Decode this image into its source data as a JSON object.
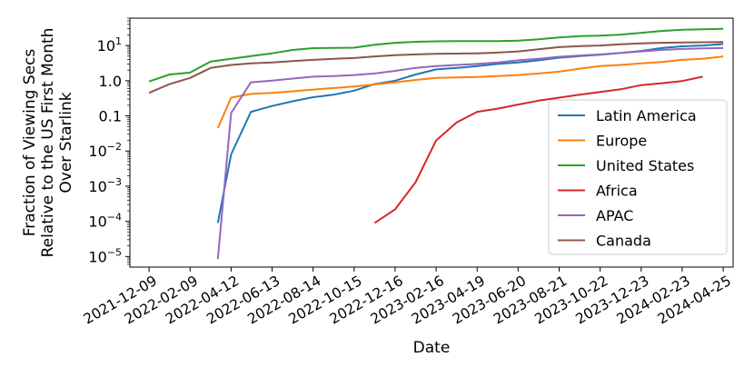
{
  "chart_data": {
    "type": "line",
    "title": "",
    "xlabel": "Date",
    "ylabel_lines": [
      "Fraction of Viewing Secs",
      "Relative to the US First Month",
      "Over Starlink"
    ],
    "yscale": "log",
    "ylim": [
      5e-06,
      60
    ],
    "xlim": [
      "2021-11-10",
      "2024-05-10"
    ],
    "grid": false,
    "legend_position": "center-right",
    "x_tick_labels": [
      "2021-12-09",
      "2022-02-09",
      "2022-04-12",
      "2022-06-13",
      "2022-08-14",
      "2022-10-15",
      "2022-12-16",
      "2023-02-16",
      "2023-04-19",
      "2023-06-20",
      "2023-08-21",
      "2023-10-22",
      "2023-12-23",
      "2024-02-23",
      "2024-04-25"
    ],
    "y_ticks": [
      {
        "value": 1e-05,
        "base": "10",
        "exp": "−5"
      },
      {
        "value": 0.0001,
        "base": "10",
        "exp": "−4"
      },
      {
        "value": 0.001,
        "base": "10",
        "exp": "−3"
      },
      {
        "value": 0.01,
        "plain": "10",
        "sup": "−2",
        "label": "10−2"
      },
      {
        "value": 0.1,
        "label": "0.1"
      },
      {
        "value": 1,
        "label": "1.0"
      },
      {
        "value": 10,
        "label": "10",
        "sup": "1"
      }
    ],
    "series": [
      {
        "name": "Latin America",
        "color": "#1f77b4",
        "points": [
          [
            "2022-03-23",
            9e-05
          ],
          [
            "2022-04-12",
            0.008
          ],
          [
            "2022-05-12",
            0.13
          ],
          [
            "2022-06-13",
            0.19
          ],
          [
            "2022-07-14",
            0.26
          ],
          [
            "2022-08-14",
            0.34
          ],
          [
            "2022-09-14",
            0.4
          ],
          [
            "2022-10-15",
            0.52
          ],
          [
            "2022-11-15",
            0.8
          ],
          [
            "2022-12-16",
            1.0
          ],
          [
            "2023-01-16",
            1.5
          ],
          [
            "2023-02-16",
            2.1
          ],
          [
            "2023-03-19",
            2.3
          ],
          [
            "2023-04-19",
            2.6
          ],
          [
            "2023-05-20",
            3.0
          ],
          [
            "2023-06-20",
            3.3
          ],
          [
            "2023-07-21",
            3.8
          ],
          [
            "2023-08-21",
            4.5
          ],
          [
            "2023-09-21",
            5.0
          ],
          [
            "2023-10-22",
            5.5
          ],
          [
            "2023-11-22",
            6.2
          ],
          [
            "2023-12-23",
            7.0
          ],
          [
            "2024-01-23",
            8.5
          ],
          [
            "2024-02-23",
            9.5
          ],
          [
            "2024-03-25",
            10.0
          ],
          [
            "2024-04-25",
            11.0
          ]
        ]
      },
      {
        "name": "Europe",
        "color": "#ff7f0e",
        "points": [
          [
            "2022-03-23",
            0.045
          ],
          [
            "2022-04-12",
            0.33
          ],
          [
            "2022-05-12",
            0.42
          ],
          [
            "2022-06-13",
            0.45
          ],
          [
            "2022-07-14",
            0.5
          ],
          [
            "2022-08-14",
            0.56
          ],
          [
            "2022-09-14",
            0.62
          ],
          [
            "2022-10-15",
            0.68
          ],
          [
            "2022-11-15",
            0.78
          ],
          [
            "2022-12-16",
            0.9
          ],
          [
            "2023-01-16",
            1.05
          ],
          [
            "2023-02-16",
            1.2
          ],
          [
            "2023-03-19",
            1.23
          ],
          [
            "2023-04-19",
            1.28
          ],
          [
            "2023-05-20",
            1.35
          ],
          [
            "2023-06-20",
            1.45
          ],
          [
            "2023-07-21",
            1.6
          ],
          [
            "2023-08-21",
            1.8
          ],
          [
            "2023-09-21",
            2.2
          ],
          [
            "2023-10-22",
            2.6
          ],
          [
            "2023-11-22",
            2.8
          ],
          [
            "2023-12-23",
            3.1
          ],
          [
            "2024-01-23",
            3.4
          ],
          [
            "2024-02-23",
            3.9
          ],
          [
            "2024-03-25",
            4.2
          ],
          [
            "2024-04-25",
            4.9
          ]
        ]
      },
      {
        "name": "United States",
        "color": "#2ca02c",
        "points": [
          [
            "2021-12-09",
            0.95
          ],
          [
            "2022-01-09",
            1.5
          ],
          [
            "2022-02-09",
            1.7
          ],
          [
            "2022-03-12",
            3.5
          ],
          [
            "2022-04-12",
            4.2
          ],
          [
            "2022-05-12",
            5.0
          ],
          [
            "2022-06-13",
            6.0
          ],
          [
            "2022-07-14",
            7.5
          ],
          [
            "2022-08-14",
            8.4
          ],
          [
            "2022-09-14",
            8.6
          ],
          [
            "2022-10-15",
            8.7
          ],
          [
            "2022-11-15",
            10.5
          ],
          [
            "2022-12-16",
            12.0
          ],
          [
            "2023-01-16",
            12.8
          ],
          [
            "2023-02-16",
            13.2
          ],
          [
            "2023-03-19",
            13.4
          ],
          [
            "2023-04-19",
            13.4
          ],
          [
            "2023-05-20",
            13.3
          ],
          [
            "2023-06-20",
            13.8
          ],
          [
            "2023-07-21",
            15.0
          ],
          [
            "2023-08-21",
            17.0
          ],
          [
            "2023-09-21",
            18.5
          ],
          [
            "2023-10-22",
            19.0
          ],
          [
            "2023-11-22",
            20.5
          ],
          [
            "2023-12-23",
            23.0
          ],
          [
            "2024-01-23",
            26.0
          ],
          [
            "2024-02-23",
            28.0
          ],
          [
            "2024-03-25",
            29.0
          ],
          [
            "2024-04-25",
            30.0
          ]
        ]
      },
      {
        "name": "Africa",
        "color": "#d62728",
        "points": [
          [
            "2022-11-15",
            9e-05
          ],
          [
            "2022-12-16",
            0.00022
          ],
          [
            "2023-01-16",
            0.0013
          ],
          [
            "2023-02-16",
            0.02
          ],
          [
            "2023-03-19",
            0.065
          ],
          [
            "2023-04-19",
            0.13
          ],
          [
            "2023-05-20",
            0.16
          ],
          [
            "2023-06-20",
            0.21
          ],
          [
            "2023-07-21",
            0.27
          ],
          [
            "2023-08-21",
            0.33
          ],
          [
            "2023-09-21",
            0.4
          ],
          [
            "2023-10-22",
            0.48
          ],
          [
            "2023-11-22",
            0.57
          ],
          [
            "2023-12-23",
            0.75
          ],
          [
            "2024-01-23",
            0.85
          ],
          [
            "2024-02-23",
            0.98
          ],
          [
            "2024-03-25",
            1.3
          ]
        ]
      },
      {
        "name": "APAC",
        "color": "#9467bd",
        "points": [
          [
            "2022-03-23",
            8.5e-06
          ],
          [
            "2022-04-12",
            0.12
          ],
          [
            "2022-05-12",
            0.9
          ],
          [
            "2022-06-13",
            1.0
          ],
          [
            "2022-07-14",
            1.15
          ],
          [
            "2022-08-14",
            1.3
          ],
          [
            "2022-09-14",
            1.35
          ],
          [
            "2022-10-15",
            1.45
          ],
          [
            "2022-11-15",
            1.6
          ],
          [
            "2022-12-16",
            1.9
          ],
          [
            "2023-01-16",
            2.3
          ],
          [
            "2023-02-16",
            2.6
          ],
          [
            "2023-03-19",
            2.8
          ],
          [
            "2023-04-19",
            3.0
          ],
          [
            "2023-05-20",
            3.3
          ],
          [
            "2023-06-20",
            3.8
          ],
          [
            "2023-07-21",
            4.2
          ],
          [
            "2023-08-21",
            4.8
          ],
          [
            "2023-09-21",
            5.2
          ],
          [
            "2023-10-22",
            5.6
          ],
          [
            "2023-11-22",
            6.2
          ],
          [
            "2023-12-23",
            6.8
          ],
          [
            "2024-01-23",
            7.5
          ],
          [
            "2024-02-23",
            8.0
          ],
          [
            "2024-03-25",
            8.3
          ],
          [
            "2024-04-25",
            8.5
          ]
        ]
      },
      {
        "name": "Canada",
        "color": "#8c564b",
        "points": [
          [
            "2021-12-09",
            0.45
          ],
          [
            "2022-01-09",
            0.8
          ],
          [
            "2022-02-09",
            1.2
          ],
          [
            "2022-03-12",
            2.3
          ],
          [
            "2022-04-12",
            2.8
          ],
          [
            "2022-05-12",
            3.1
          ],
          [
            "2022-06-13",
            3.3
          ],
          [
            "2022-07-14",
            3.6
          ],
          [
            "2022-08-14",
            3.9
          ],
          [
            "2022-09-14",
            4.2
          ],
          [
            "2022-10-15",
            4.4
          ],
          [
            "2022-11-15",
            4.9
          ],
          [
            "2022-12-16",
            5.3
          ],
          [
            "2023-01-16",
            5.6
          ],
          [
            "2023-02-16",
            5.8
          ],
          [
            "2023-03-19",
            5.9
          ],
          [
            "2023-04-19",
            6.0
          ],
          [
            "2023-05-20",
            6.3
          ],
          [
            "2023-06-20",
            6.8
          ],
          [
            "2023-07-21",
            7.8
          ],
          [
            "2023-08-21",
            9.0
          ],
          [
            "2023-09-21",
            9.6
          ],
          [
            "2023-10-22",
            10.0
          ],
          [
            "2023-11-22",
            10.8
          ],
          [
            "2023-12-23",
            11.5
          ],
          [
            "2024-01-23",
            12.0
          ],
          [
            "2024-02-23",
            12.2
          ],
          [
            "2024-03-25",
            12.4
          ],
          [
            "2024-04-25",
            12.6
          ]
        ]
      }
    ]
  }
}
